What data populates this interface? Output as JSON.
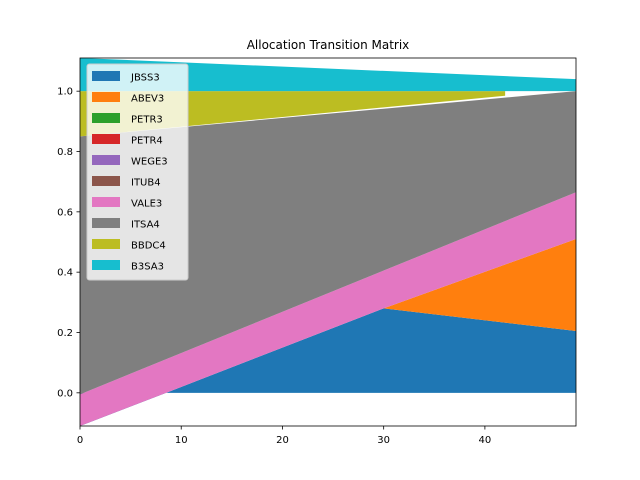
{
  "chart_data": {
    "type": "area",
    "title": "Allocation Transition Matrix",
    "xlabel": "",
    "ylabel": "",
    "x_range": [
      0,
      49
    ],
    "ylim": [
      -0.11,
      1.11
    ],
    "x_ticks": [
      0,
      10,
      20,
      30,
      40
    ],
    "y_ticks": [
      0.0,
      0.2,
      0.4,
      0.6,
      0.8,
      1.0
    ],
    "grid": false,
    "legend_position": "upper-left",
    "series": [
      {
        "name": "JBSS3",
        "color": "#1f77b4",
        "points": [
          [
            0,
            -0.11
          ],
          [
            8.5,
            0.0
          ],
          [
            30,
            0.28
          ],
          [
            49,
            0.205
          ]
        ],
        "baseline": [
          [
            0,
            0.0
          ],
          [
            49,
            0.0
          ]
        ]
      },
      {
        "name": "ABEV3",
        "color": "#ff7f0e",
        "points": [
          [
            30,
            0.28
          ],
          [
            49,
            0.51
          ]
        ],
        "baseline": [
          [
            30,
            0.28
          ],
          [
            49,
            0.205
          ]
        ]
      },
      {
        "name": "PETR3",
        "color": "#2ca02c",
        "points": [],
        "baseline": []
      },
      {
        "name": "PETR4",
        "color": "#d62728",
        "points": [],
        "baseline": []
      },
      {
        "name": "WEGE3",
        "color": "#9467bd",
        "points": [],
        "baseline": []
      },
      {
        "name": "ITUB4",
        "color": "#8c564b",
        "points": [],
        "baseline": []
      },
      {
        "name": "VALE3",
        "color": "#e377c2",
        "points": [
          [
            0,
            -0.005
          ],
          [
            49,
            0.665
          ]
        ],
        "baseline": [
          [
            0,
            -0.11
          ],
          [
            8.5,
            0.0
          ],
          [
            30,
            0.28
          ],
          [
            49,
            0.51
          ]
        ]
      },
      {
        "name": "ITSA4",
        "color": "#7f7f7f",
        "points": [
          [
            0,
            0.85
          ],
          [
            49,
            1.0
          ]
        ],
        "baseline": [
          [
            0,
            -0.005
          ],
          [
            49,
            0.665
          ]
        ]
      },
      {
        "name": "BBDC4",
        "color": "#bcbd22",
        "points": [
          [
            0,
            1.0
          ],
          [
            42,
            1.0
          ]
        ],
        "baseline": [
          [
            0,
            0.85
          ],
          [
            42,
            0.985
          ]
        ]
      },
      {
        "name": "B3SA3",
        "color": "#17becf",
        "points": [
          [
            0,
            1.11
          ],
          [
            49,
            1.04
          ]
        ],
        "baseline": [
          [
            0,
            1.0
          ],
          [
            49,
            1.0
          ]
        ]
      }
    ]
  }
}
